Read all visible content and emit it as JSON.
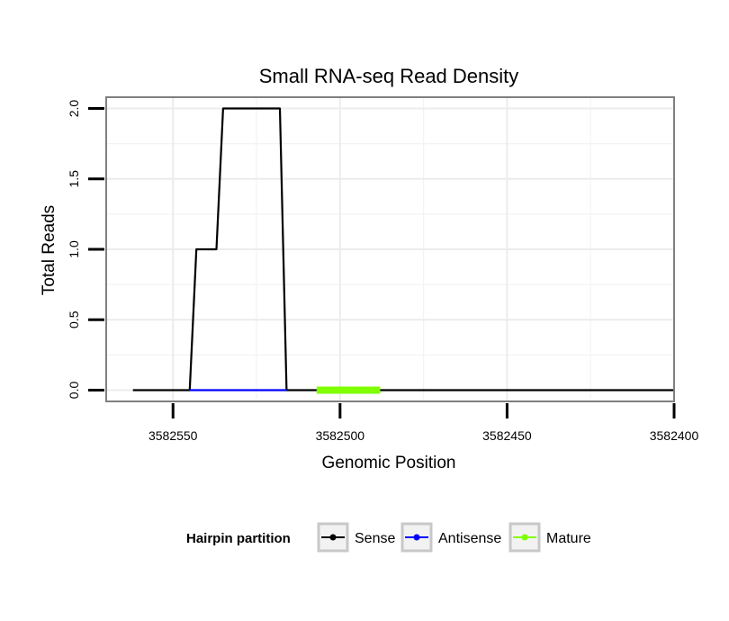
{
  "chart_data": {
    "type": "line",
    "title": "Small RNA-seq Read Density",
    "xlabel": "Genomic Position",
    "ylabel": "Total Reads",
    "x_reversed": true,
    "xlim": [
      3582570,
      3582400
    ],
    "ylim": [
      -0.08,
      2.08
    ],
    "x_ticks": [
      3582550,
      3582500,
      3582450,
      3582400
    ],
    "x_tick_labels": [
      "3582550",
      "3582500",
      "3582450",
      "3582400"
    ],
    "y_ticks": [
      0.0,
      0.5,
      1.0,
      1.5,
      2.0
    ],
    "y_tick_labels": [
      "0.0",
      "0.5",
      "1.0",
      "1.5",
      "2.0"
    ],
    "grid": true,
    "legend": {
      "title": "Hairpin partition",
      "position": "bottom",
      "entries": [
        "Sense",
        "Antisense",
        "Mature"
      ]
    },
    "series": [
      {
        "name": "Sense",
        "color": "#000000",
        "x": [
          3582562,
          3582545,
          3582543,
          3582537,
          3582535,
          3582518,
          3582516,
          3582400
        ],
        "y": [
          0,
          0,
          1,
          1,
          2,
          2,
          0,
          0
        ]
      },
      {
        "name": "Antisense",
        "color": "#0000ff",
        "x": [
          3582545,
          3582516
        ],
        "y": [
          0,
          0
        ]
      },
      {
        "name": "Mature",
        "color": "#7fff00",
        "x": [
          3582507,
          3582488
        ],
        "y": [
          0,
          0
        ]
      }
    ]
  }
}
